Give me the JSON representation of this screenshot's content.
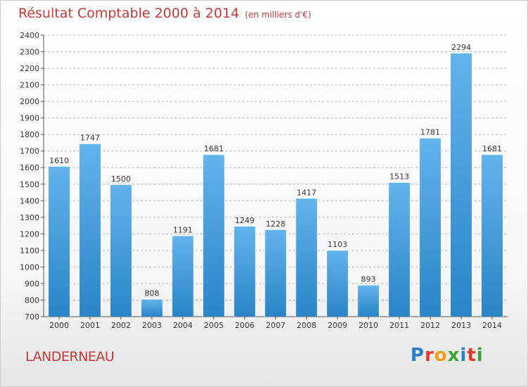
{
  "header": {
    "title": "Résultat Comptable 2000 à 2014",
    "subtitle": "(en milliers d'€)"
  },
  "footer": {
    "commune": "LANDERNEAU",
    "logo_text": "Proxiti",
    "logo_colors": [
      "#2b7fc8",
      "#e23a2a",
      "#f29d1b",
      "#3aa335",
      "#2b7fc8",
      "#e23a2a",
      "#3aa335"
    ]
  },
  "colors": {
    "bar_top": "#63b3ec",
    "bar_bottom": "#2a84c6",
    "grid": "#b5b5b5",
    "title": "#c23a3a"
  },
  "chart_data": {
    "type": "bar",
    "categories": [
      "2000",
      "2001",
      "2002",
      "2003",
      "2004",
      "2005",
      "2006",
      "2007",
      "2008",
      "2009",
      "2010",
      "2011",
      "2012",
      "2013",
      "2014"
    ],
    "values": [
      1610,
      1747,
      1500,
      808,
      1191,
      1681,
      1249,
      1228,
      1417,
      1103,
      893,
      1513,
      1781,
      2294,
      1681
    ],
    "ylim": [
      700,
      2400
    ],
    "yticks": [
      700,
      800,
      900,
      1000,
      1100,
      1200,
      1300,
      1400,
      1500,
      1600,
      1700,
      1800,
      1900,
      2000,
      2100,
      2200,
      2300,
      2400
    ],
    "grid": true,
    "data_labels": true
  }
}
